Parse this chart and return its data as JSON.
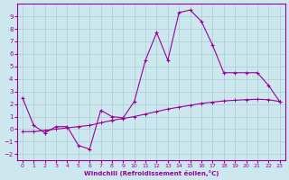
{
  "xlabel": "Windchill (Refroidissement éolien,°C)",
  "background_color": "#cce8ee",
  "grid_color": "#aaccd4",
  "line_color": "#990099",
  "x_values": [
    0,
    1,
    2,
    3,
    4,
    5,
    6,
    7,
    8,
    9,
    10,
    11,
    12,
    13,
    14,
    15,
    16,
    17,
    18,
    19,
    20,
    21,
    22,
    23
  ],
  "line1_y": [
    2.5,
    0.3,
    -0.3,
    0.2,
    0.2,
    -1.3,
    -1.6,
    1.5,
    1.0,
    0.9,
    2.2,
    5.5,
    7.7,
    5.5,
    9.3,
    9.5,
    8.6,
    6.7,
    4.5,
    4.5,
    4.5,
    4.5,
    3.5,
    2.2
  ],
  "line2_y": [
    -0.2,
    -0.2,
    -0.1,
    0.0,
    0.1,
    0.2,
    0.3,
    0.5,
    0.7,
    0.85,
    1.0,
    1.2,
    1.4,
    1.6,
    1.75,
    1.9,
    2.05,
    2.15,
    2.25,
    2.3,
    2.35,
    2.38,
    2.35,
    2.2
  ],
  "ylim": [
    -2.5,
    10
  ],
  "xlim": [
    -0.5,
    23.5
  ],
  "yticks": [
    -2,
    -1,
    0,
    1,
    2,
    3,
    4,
    5,
    6,
    7,
    8,
    9
  ],
  "xticks": [
    0,
    1,
    2,
    3,
    4,
    5,
    6,
    7,
    8,
    9,
    10,
    11,
    12,
    13,
    14,
    15,
    16,
    17,
    18,
    19,
    20,
    21,
    22,
    23
  ],
  "figsize": [
    3.2,
    2.0
  ],
  "dpi": 100
}
